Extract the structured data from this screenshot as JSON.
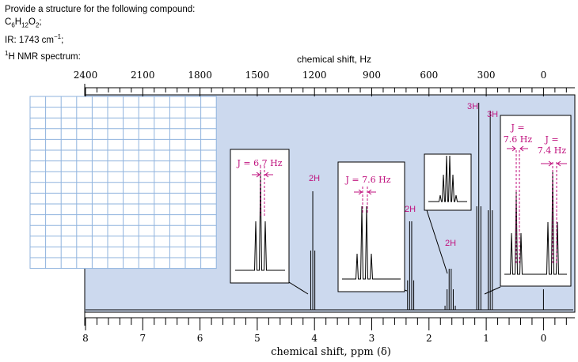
{
  "question": {
    "prompt": "Provide a structure for the following compound:",
    "formula": [
      "C",
      "6",
      "H",
      "12",
      "O",
      "2",
      ";"
    ],
    "ir": [
      "IR: 1743 cm",
      "−1",
      ";"
    ],
    "nmr": [
      "1",
      "H NMR spectrum:"
    ]
  },
  "chart_data": {
    "type": "line",
    "title": "",
    "xlabel": "chemical shift, ppm (δ)",
    "x2label": "chemical shift, Hz",
    "ylabel": "",
    "xlim": [
      8.25,
      -0.5
    ],
    "ppm_ticks": [
      "8",
      "7",
      "6",
      "5",
      "4",
      "3",
      "2",
      "1",
      "0"
    ],
    "hz_ticks": [
      "2400",
      "2100",
      "1800",
      "1500",
      "1200",
      "900",
      "600",
      "300",
      "0"
    ],
    "grid": "blank answer grid at upper left",
    "background_color": "#ccd9ee",
    "annotation_color": "#c0137f",
    "peaks": [
      {
        "shift": 4.03,
        "multiplicity": "triplet",
        "label": "2H",
        "J": "J = 6.7 Hz"
      },
      {
        "shift": 2.32,
        "multiplicity": "quartet",
        "label": "2H",
        "J": "J = 7.6 Hz"
      },
      {
        "shift": 1.63,
        "multiplicity": "sextet",
        "label": "2H"
      },
      {
        "shift": 1.13,
        "multiplicity": "triplet",
        "label": "3H",
        "J": "J = 7.6 Hz"
      },
      {
        "shift": 0.93,
        "multiplicity": "triplet",
        "label": "3H",
        "J": "J = 7.4 Hz"
      },
      {
        "shift": 0.0,
        "multiplicity": "singlet",
        "label": ""
      }
    ]
  }
}
